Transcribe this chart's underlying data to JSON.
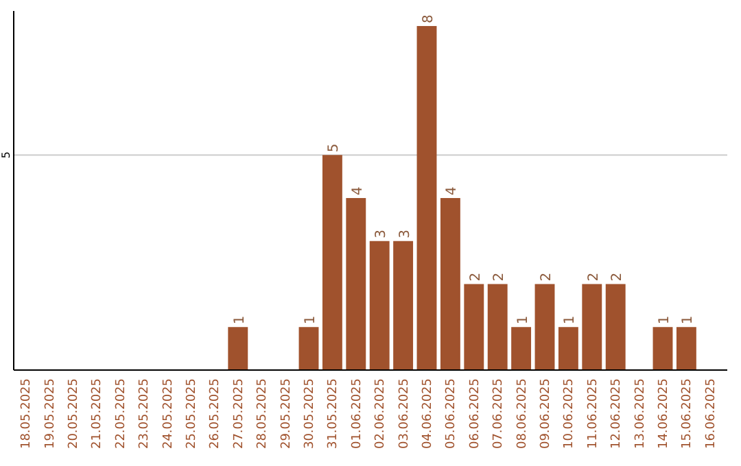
{
  "chart_data": {
    "type": "bar",
    "categories": [
      "18.05.2025",
      "19.05.2025",
      "20.05.2025",
      "21.05.2025",
      "22.05.2025",
      "23.05.2025",
      "24.05.2025",
      "25.05.2025",
      "26.05.2025",
      "27.05.2025",
      "28.05.2025",
      "29.05.2025",
      "30.05.2025",
      "31.05.2025",
      "01.06.2025",
      "02.06.2025",
      "03.06.2025",
      "04.06.2025",
      "05.06.2025",
      "06.06.2025",
      "07.06.2025",
      "08.06.2025",
      "09.06.2025",
      "10.06.2025",
      "11.06.2025",
      "12.06.2025",
      "13.06.2025",
      "14.06.2025",
      "15.06.2025",
      "16.06.2025"
    ],
    "values": [
      0,
      0,
      0,
      0,
      0,
      0,
      0,
      0,
      0,
      1,
      0,
      0,
      1,
      5,
      4,
      3,
      3,
      8,
      4,
      2,
      2,
      1,
      2,
      1,
      2,
      2,
      0,
      1,
      1,
      0
    ],
    "value_labels": [
      null,
      null,
      null,
      null,
      null,
      null,
      null,
      null,
      null,
      "1",
      null,
      null,
      "1",
      "5",
      "4",
      "3",
      "3",
      "8",
      "4",
      "2",
      "2",
      "1",
      "2",
      "1",
      "2",
      "2",
      null,
      "1",
      "1",
      null
    ],
    "color": "#a0522d",
    "ylim": [
      0,
      8.35
    ],
    "yticks": [
      5
    ],
    "grid": "y"
  }
}
